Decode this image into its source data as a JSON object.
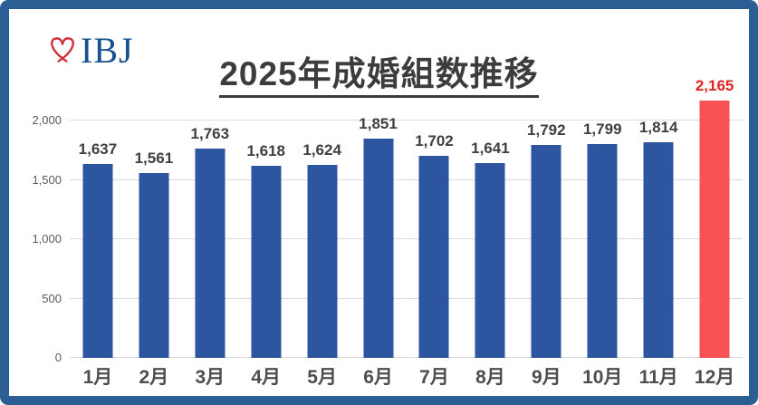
{
  "logo": {
    "text": "IBJ",
    "heart_icon": "heart-outline-icon",
    "text_color": "#15508f",
    "heart_color": "#d22f3c"
  },
  "title": {
    "text": "2025年成婚組数推移",
    "color": "#3c3c3c"
  },
  "chart_data": {
    "type": "bar",
    "title": "2025年成婚組数推移",
    "categories": [
      "1月",
      "2月",
      "3月",
      "4月",
      "5月",
      "6月",
      "7月",
      "8月",
      "9月",
      "10月",
      "11月",
      "12月"
    ],
    "values": [
      1637,
      1561,
      1763,
      1618,
      1624,
      1851,
      1702,
      1641,
      1792,
      1799,
      1814,
      2165
    ],
    "value_labels": [
      "1,637",
      "1,561",
      "1,763",
      "1,618",
      "1,624",
      "1,851",
      "1,702",
      "1,641",
      "1,792",
      "1,799",
      "1,814",
      "2,165"
    ],
    "xlabel": "",
    "ylabel": "",
    "ylim": [
      0,
      2000
    ],
    "yticks": [
      0,
      500,
      1000,
      1500,
      2000
    ],
    "ytick_labels": [
      "0",
      "500",
      "1,000",
      "1,500",
      "2,000"
    ],
    "grid": true,
    "legend": "none",
    "bar_color": "#2e55a0",
    "highlight_index": 11,
    "highlight_color": "#fa5254",
    "highlight_label_color": "#e32222",
    "label_color": "#3f3f3f",
    "frame_color": "#2b5f94",
    "gridline_color": "#d9d9d9"
  }
}
